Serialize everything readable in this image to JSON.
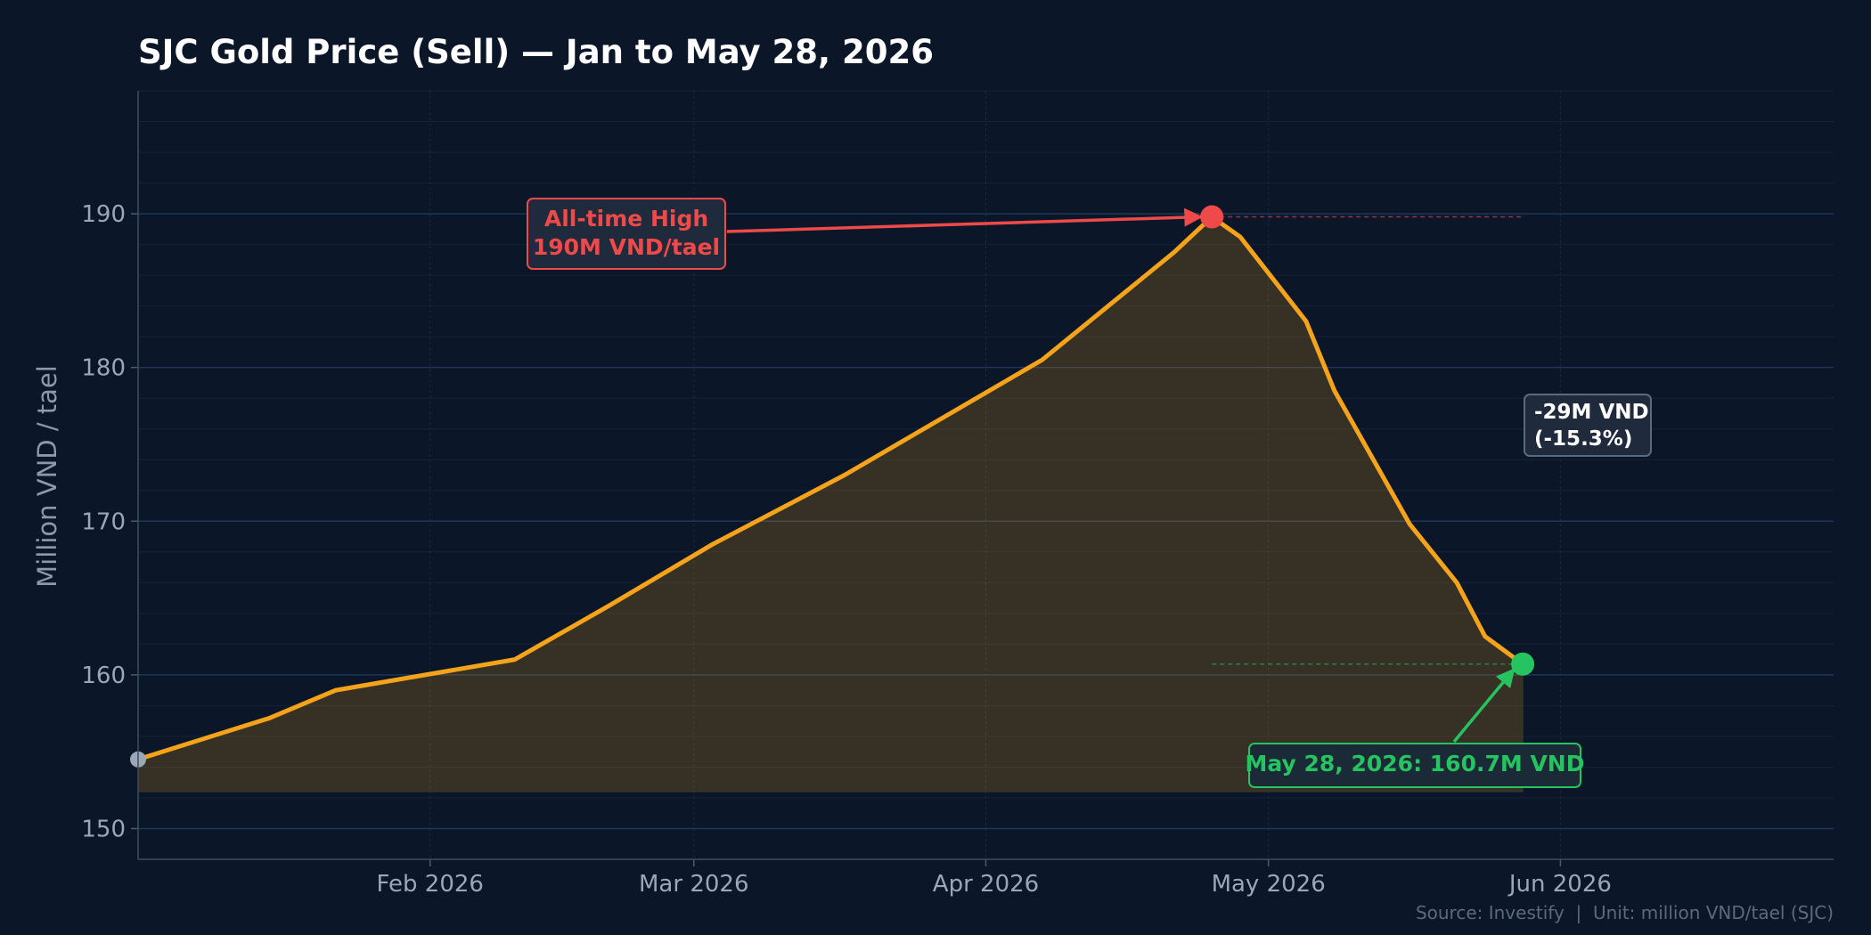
{
  "chart_data": {
    "type": "area",
    "title": "SJC Gold Price (Sell) — Jan to May 28, 2026",
    "ylabel": "Million VND / tael",
    "xlabel": "",
    "x_range": [
      "2026-01-01",
      "2026-06-30"
    ],
    "ylim": [
      148,
      198
    ],
    "y_ticks": [
      150,
      160,
      170,
      180,
      190
    ],
    "x_ticks": [
      {
        "date": "2026-02-01",
        "label": "Feb 2026"
      },
      {
        "date": "2026-03-01",
        "label": "Mar 2026"
      },
      {
        "date": "2026-04-01",
        "label": "Apr 2026"
      },
      {
        "date": "2026-05-01",
        "label": "May 2026"
      },
      {
        "date": "2026-06-01",
        "label": "Jun 2026"
      }
    ],
    "grid": true,
    "series": [
      {
        "color": "#f5a31a",
        "points": [
          {
            "x": "2026-01-01",
            "y": 154.5
          },
          {
            "x": "2026-01-15",
            "y": 157.2
          },
          {
            "x": "2026-01-22",
            "y": 159.0
          },
          {
            "x": "2026-02-10",
            "y": 161.0
          },
          {
            "x": "2026-02-20",
            "y": 164.5
          },
          {
            "x": "2026-03-03",
            "y": 168.5
          },
          {
            "x": "2026-03-17",
            "y": 173.0
          },
          {
            "x": "2026-04-07",
            "y": 180.5
          },
          {
            "x": "2026-04-21",
            "y": 187.5
          },
          {
            "x": "2026-04-25",
            "y": 189.8
          },
          {
            "x": "2026-04-28",
            "y": 188.5
          },
          {
            "x": "2026-05-05",
            "y": 183.0
          },
          {
            "x": "2026-05-08",
            "y": 178.5
          },
          {
            "x": "2026-05-16",
            "y": 169.8
          },
          {
            "x": "2026-05-21",
            "y": 166.0
          },
          {
            "x": "2026-05-24",
            "y": 162.5
          },
          {
            "x": "2026-05-28",
            "y": 160.7
          }
        ]
      }
    ],
    "annotations": {
      "peak": {
        "x": "2026-04-25",
        "y": 189.8,
        "lines": [
          "All-time High",
          "190M VND/tael"
        ],
        "color": "#ee4a4a"
      },
      "latest": {
        "x": "2026-05-28",
        "y": 160.7,
        "text": "May 28, 2026: 160.7M VND",
        "color": "#25c460"
      },
      "change": {
        "lines": [
          "-29M VND",
          "(-15.3%)"
        ]
      }
    },
    "source": "Source: Investify  |  Unit: million VND/tael (SJC)"
  }
}
